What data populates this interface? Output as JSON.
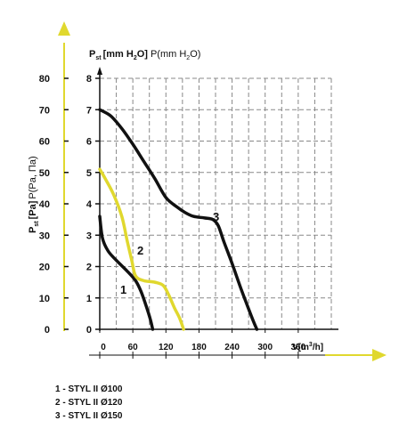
{
  "chart_data": {
    "type": "line",
    "title_pa_axis": {
      "main": "P",
      "sub": "st",
      "unit": "[Pa]",
      "alt": "P(Pa, Па)"
    },
    "title_mm_axis": {
      "main": "P",
      "sub": "st",
      "unit_pre": "[mm H",
      "unit_sub": "2",
      "unit_post": "O]",
      "alt_pre": "P(mm H",
      "alt_sub": "2",
      "alt_post": "O)"
    },
    "x_axis": {
      "label_pre": "V[m",
      "label_sup": "3",
      "label_post": "/h]",
      "ticks": [
        0,
        60,
        120,
        180,
        240,
        300,
        360
      ],
      "range": [
        0,
        420
      ]
    },
    "y_axis_pa": {
      "ticks": [
        0,
        10,
        20,
        30,
        40,
        50,
        60,
        70,
        80
      ],
      "range": [
        0,
        80
      ]
    },
    "y_axis_mm": {
      "ticks": [
        0,
        1,
        2,
        3,
        4,
        5,
        6,
        7,
        8
      ],
      "range": [
        0,
        8
      ]
    },
    "grid": true,
    "series": [
      {
        "name": "1",
        "color": "#111111",
        "points": [
          [
            0,
            3.6
          ],
          [
            5,
            2.9
          ],
          [
            15,
            2.5
          ],
          [
            30,
            2.2
          ],
          [
            50,
            1.85
          ],
          [
            65,
            1.55
          ],
          [
            75,
            1.2
          ],
          [
            85,
            0.7
          ],
          [
            92,
            0.3
          ],
          [
            96,
            0
          ]
        ]
      },
      {
        "name": "2",
        "color": "#e0d82e",
        "points": [
          [
            0,
            5.1
          ],
          [
            10,
            4.8
          ],
          [
            25,
            4.3
          ],
          [
            40,
            3.6
          ],
          [
            50,
            2.8
          ],
          [
            58,
            2.2
          ],
          [
            65,
            1.7
          ],
          [
            80,
            1.55
          ],
          [
            100,
            1.5
          ],
          [
            115,
            1.4
          ],
          [
            125,
            1.1
          ],
          [
            135,
            0.7
          ],
          [
            145,
            0.35
          ],
          [
            152,
            0
          ]
        ]
      },
      {
        "name": "3",
        "color": "#111111",
        "points": [
          [
            0,
            7
          ],
          [
            20,
            6.8
          ],
          [
            40,
            6.4
          ],
          [
            60,
            5.9
          ],
          [
            80,
            5.35
          ],
          [
            100,
            4.8
          ],
          [
            120,
            4.2
          ],
          [
            140,
            3.9
          ],
          [
            155,
            3.72
          ],
          [
            170,
            3.6
          ],
          [
            190,
            3.55
          ],
          [
            205,
            3.5
          ],
          [
            215,
            3.3
          ],
          [
            225,
            2.8
          ],
          [
            240,
            2.1
          ],
          [
            255,
            1.35
          ],
          [
            270,
            0.65
          ],
          [
            280,
            0.2
          ],
          [
            285,
            0
          ]
        ]
      }
    ],
    "curve_labels": [
      "1",
      "2",
      "3"
    ],
    "legend": [
      "1 - STYL II Ø100",
      "2 - STYL II Ø120",
      "3 - STYL II Ø150"
    ]
  }
}
